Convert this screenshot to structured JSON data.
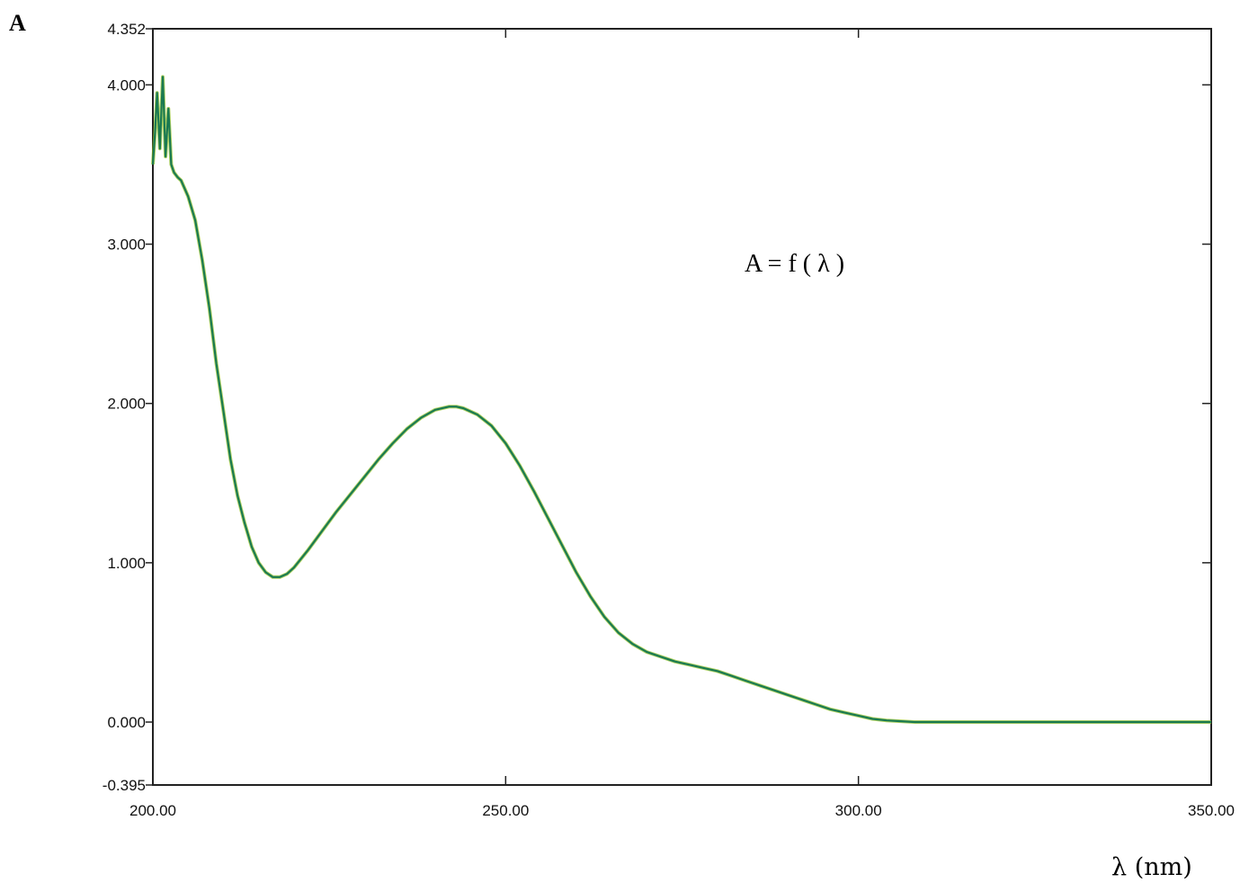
{
  "chart_data": {
    "type": "line",
    "panel_label": "A",
    "title": "",
    "annotation": "A = f ( λ )",
    "xlabel": "λ (nm)",
    "ylabel": "",
    "xlim": [
      200.0,
      350.0
    ],
    "ylim": [
      -0.395,
      4.352
    ],
    "x_ticks": [
      200.0,
      250.0,
      300.0,
      350.0
    ],
    "x_tick_labels": [
      "200.00",
      "250.00",
      "300.00",
      "350.00"
    ],
    "y_ticks": [
      -0.395,
      0.0,
      1.0,
      2.0,
      3.0,
      4.0,
      4.352
    ],
    "y_tick_labels": [
      "-0.395",
      "0.000",
      "1.000",
      "2.000",
      "3.000",
      "4.000",
      "4.352"
    ],
    "grid": false,
    "legend": "none",
    "colors": {
      "main_line": "#1a7a52",
      "overlay_line": "#8fbf1f",
      "axes": "#222222"
    },
    "series": [
      {
        "x": [
          200.0,
          200.3,
          200.6,
          201.0,
          201.4,
          201.8,
          202.2,
          202.6,
          203.0,
          203.5,
          204.0,
          205.0,
          206.0,
          207.0,
          208.0,
          209.0,
          210.0,
          211.0,
          212.0,
          213.0,
          214.0,
          215.0,
          216.0,
          217.0,
          218.0,
          219.0,
          220.0,
          222.0,
          224.0,
          226.0,
          228.0,
          230.0,
          232.0,
          234.0,
          236.0,
          238.0,
          240.0,
          242.0,
          243.0,
          244.0,
          246.0,
          248.0,
          250.0,
          252.0,
          254.0,
          256.0,
          258.0,
          260.0,
          262.0,
          264.0,
          266.0,
          268.0,
          270.0,
          272.0,
          274.0,
          276.0,
          278.0,
          280.0,
          282.0,
          284.0,
          286.0,
          288.0,
          290.0,
          292.0,
          294.0,
          296.0,
          298.0,
          300.0,
          302.0,
          304.0,
          306.0,
          308.0,
          310.0,
          315.0,
          320.0,
          330.0,
          340.0,
          350.0
        ],
        "values": [
          3.5,
          3.7,
          3.95,
          3.6,
          4.05,
          3.55,
          3.85,
          3.5,
          3.45,
          3.42,
          3.4,
          3.3,
          3.15,
          2.9,
          2.6,
          2.25,
          1.95,
          1.65,
          1.42,
          1.25,
          1.1,
          1.0,
          0.94,
          0.91,
          0.91,
          0.93,
          0.97,
          1.08,
          1.2,
          1.32,
          1.43,
          1.54,
          1.65,
          1.75,
          1.84,
          1.91,
          1.96,
          1.98,
          1.98,
          1.97,
          1.93,
          1.86,
          1.75,
          1.61,
          1.45,
          1.28,
          1.11,
          0.94,
          0.79,
          0.66,
          0.56,
          0.49,
          0.44,
          0.41,
          0.38,
          0.36,
          0.34,
          0.32,
          0.29,
          0.26,
          0.23,
          0.2,
          0.17,
          0.14,
          0.11,
          0.08,
          0.06,
          0.04,
          0.02,
          0.01,
          0.005,
          0.0,
          0.0,
          0.0,
          0.0,
          0.0,
          0.0,
          0.0
        ]
      }
    ]
  }
}
